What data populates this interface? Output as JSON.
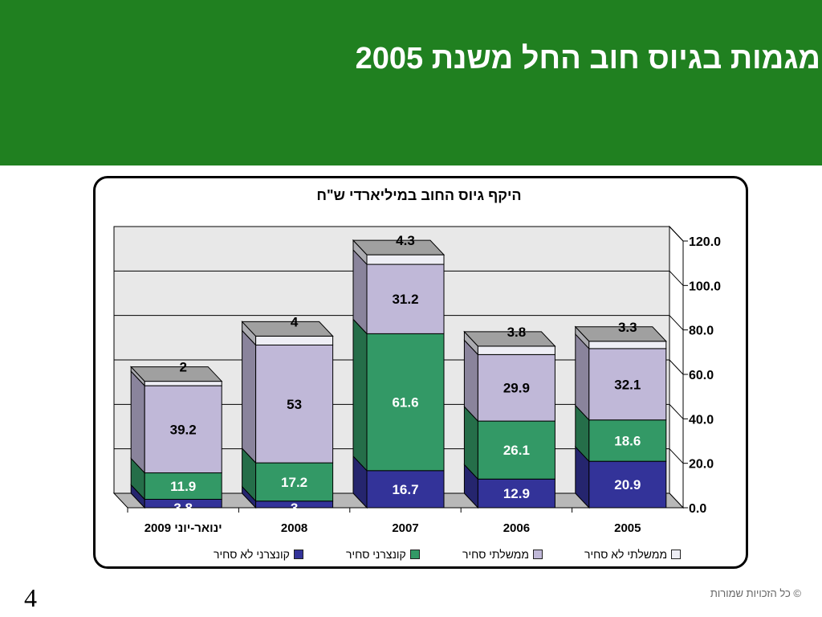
{
  "slide": {
    "title": "מגמות בגיוס חוב החל משנת 2005",
    "page_number": "4",
    "copyright": "© כל הזכויות שמורות"
  },
  "colors": {
    "banner": "#208020",
    "non_tradable_corporate": "#333399",
    "tradable_corporate": "#339966",
    "tradable_government": "#C0B8D8",
    "non_tradable_government": "#EEEEF5"
  },
  "chart_data": {
    "type": "bar",
    "stacked": true,
    "three_d": true,
    "title": "היקף גיוס החוב במיליארדי ש\"ח",
    "categories": [
      "2005",
      "2006",
      "2007",
      "2008",
      "ינואר-יוני 2009"
    ],
    "category_order": "right-to-left",
    "y_axis_position": "right",
    "ylim": [
      0,
      120
    ],
    "yticks": [
      "0.0",
      "20.0",
      "40.0",
      "60.0",
      "80.0",
      "100.0",
      "120.0"
    ],
    "grid": true,
    "legend_position": "bottom",
    "series": [
      {
        "name": "קונצרני לא סחיר",
        "color": "#333399",
        "values": [
          20.9,
          12.9,
          16.7,
          3,
          3.8
        ]
      },
      {
        "name": "קונצרני סחיר",
        "color": "#339966",
        "values": [
          18.6,
          26.1,
          61.6,
          17.2,
          11.9
        ]
      },
      {
        "name": "ממשלתי סחיר",
        "color": "#C0B8D8",
        "values": [
          32.1,
          29.9,
          31.2,
          53,
          39.2
        ]
      },
      {
        "name": "ממשלתי לא סחיר",
        "color": "#EEEEF5",
        "values": [
          3.3,
          3.8,
          4.3,
          4,
          2
        ]
      }
    ]
  }
}
